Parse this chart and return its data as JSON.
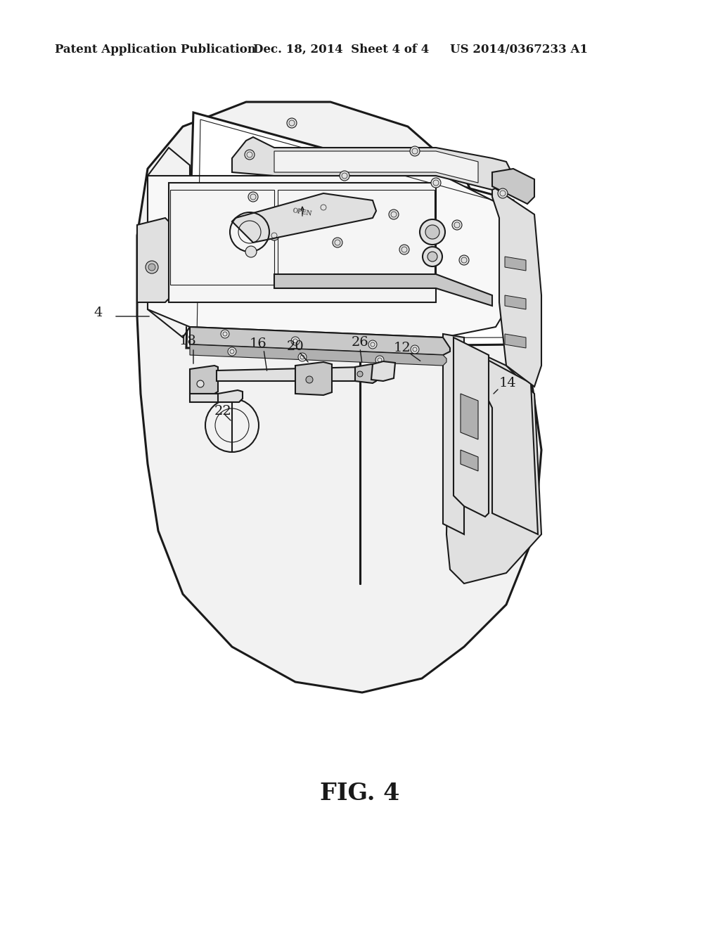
{
  "background_color": "#ffffff",
  "header_left": "Patent Application Publication",
  "header_center": "Dec. 18, 2014  Sheet 4 of 4",
  "header_right": "US 2014/0367233 A1",
  "figure_label": "FIG. 4",
  "line_color": "#1a1a1a",
  "label_color": "#1a1a1a",
  "header_fontsize": 12,
  "label_fontsize": 14,
  "fig_label_fontsize": 24,
  "fill_light": "#f2f2f2",
  "fill_mid": "#e0e0e0",
  "fill_dark": "#c8c8c8",
  "fill_darker": "#b0b0b0",
  "lw_thick": 2.2,
  "lw_main": 1.5,
  "lw_thin": 0.8
}
